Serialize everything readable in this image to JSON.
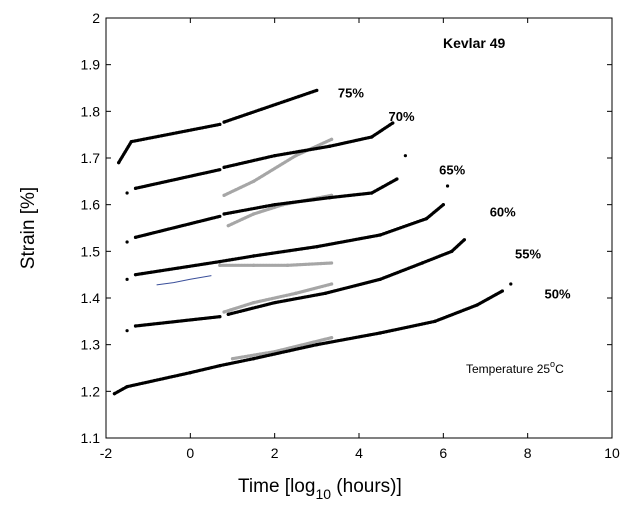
{
  "chart_data": {
    "type": "scatter",
    "title": "Kevlar 49",
    "annotation": {
      "main": "Temperature 25",
      "sup": "o",
      "unit": "C"
    },
    "xlabel": {
      "main": "Time [log",
      "sub": "10",
      "tail": " (hours)]"
    },
    "ylabel": "Strain [%]",
    "xlim": [
      -2,
      10
    ],
    "ylim": [
      1.1,
      2.0
    ],
    "x_ticks": [
      "-2",
      "0",
      "2",
      "4",
      "6",
      "8",
      "10"
    ],
    "y_ticks": [
      "1.1",
      "1.2",
      "1.3",
      "1.4",
      "1.5",
      "1.6",
      "1.7",
      "1.8",
      "1.9",
      "2"
    ],
    "colors": {
      "black_series": "#000000",
      "gray_series": "#a6a6a6",
      "blue_line": "#3a4f9a"
    },
    "series": [
      {
        "name": "75%",
        "label_at": [
          3.5,
          1.84
        ],
        "black": [
          [
            -1.7,
            1.69
          ],
          [
            -1.4,
            1.735
          ],
          [
            0.7,
            1.772
          ],
          [
            0.8,
            1.777
          ],
          [
            3.0,
            1.845
          ]
        ],
        "gray": []
      },
      {
        "name": "70%",
        "label_at": [
          4.7,
          1.79
        ],
        "black": [
          [
            -1.5,
            1.625
          ],
          [
            -1.3,
            1.635
          ],
          [
            0.7,
            1.675
          ],
          [
            0.8,
            1.68
          ],
          [
            2.0,
            1.705
          ],
          [
            3.3,
            1.725
          ],
          [
            4.3,
            1.745
          ],
          [
            4.8,
            1.775
          ]
        ],
        "gray": [
          [
            0.8,
            1.62
          ],
          [
            1.5,
            1.65
          ],
          [
            2.5,
            1.705
          ],
          [
            3.35,
            1.74
          ]
        ]
      },
      {
        "name": "65%",
        "label_at": [
          5.9,
          1.675
        ],
        "black": [
          [
            -1.5,
            1.52
          ],
          [
            -1.3,
            1.53
          ],
          [
            0.7,
            1.575
          ],
          [
            0.8,
            1.58
          ],
          [
            2.0,
            1.6
          ],
          [
            3.3,
            1.615
          ],
          [
            4.3,
            1.625
          ],
          [
            4.9,
            1.655
          ],
          [
            5.1,
            1.705
          ]
        ],
        "gray": [
          [
            0.9,
            1.555
          ],
          [
            1.5,
            1.58
          ],
          [
            2.2,
            1.6
          ],
          [
            3.35,
            1.62
          ]
        ]
      },
      {
        "name": "60%",
        "label_at": [
          7.1,
          1.585
        ],
        "black": [
          [
            -1.5,
            1.44
          ],
          [
            -1.3,
            1.45
          ],
          [
            0.7,
            1.478
          ],
          [
            1.5,
            1.49
          ],
          [
            3.0,
            1.51
          ],
          [
            4.5,
            1.535
          ],
          [
            5.6,
            1.57
          ],
          [
            6.0,
            1.6
          ],
          [
            6.1,
            1.64
          ]
        ],
        "gray": [
          [
            0.7,
            1.47
          ],
          [
            1.5,
            1.47
          ],
          [
            2.3,
            1.47
          ],
          [
            3.35,
            1.475
          ]
        ]
      },
      {
        "name": "55%",
        "label_at": [
          7.7,
          1.495
        ],
        "black": [
          [
            -1.5,
            1.33
          ],
          [
            -1.3,
            1.34
          ],
          [
            0.7,
            1.36
          ],
          [
            0.9,
            1.365
          ],
          [
            2.0,
            1.39
          ],
          [
            3.2,
            1.41
          ],
          [
            4.5,
            1.44
          ],
          [
            5.5,
            1.475
          ],
          [
            6.2,
            1.5
          ],
          [
            6.5,
            1.525
          ]
        ],
        "gray": [
          [
            0.8,
            1.37
          ],
          [
            1.5,
            1.39
          ],
          [
            2.5,
            1.41
          ],
          [
            3.35,
            1.43
          ]
        ]
      },
      {
        "name": "50%",
        "label_at": [
          8.4,
          1.41
        ],
        "black": [
          [
            -1.8,
            1.195
          ],
          [
            -1.5,
            1.21
          ],
          [
            0.0,
            1.24
          ],
          [
            0.7,
            1.255
          ],
          [
            1.5,
            1.27
          ],
          [
            3.0,
            1.3
          ],
          [
            4.5,
            1.325
          ],
          [
            5.8,
            1.35
          ],
          [
            6.8,
            1.385
          ],
          [
            7.4,
            1.415
          ],
          [
            7.6,
            1.43
          ]
        ],
        "gray": [
          [
            1.0,
            1.27
          ],
          [
            2.0,
            1.285
          ],
          [
            3.35,
            1.315
          ]
        ]
      }
    ],
    "blue_line": [
      [
        -0.8,
        1.428
      ],
      [
        -0.4,
        1.433
      ],
      [
        0.0,
        1.44
      ],
      [
        0.5,
        1.448
      ]
    ]
  }
}
